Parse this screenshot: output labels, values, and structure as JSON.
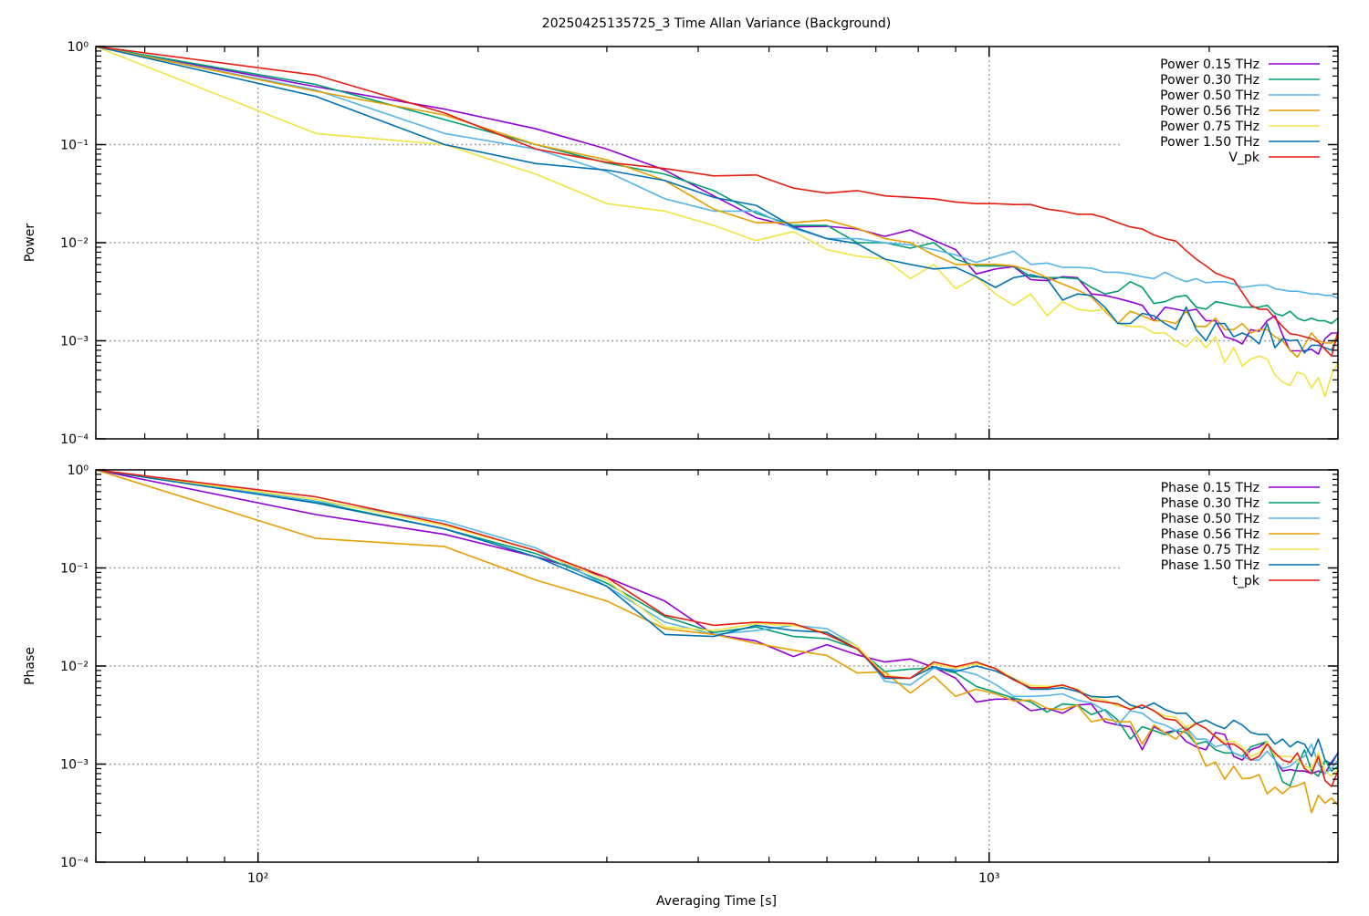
{
  "chart_data": [
    {
      "type": "line",
      "title": "20250425135725_3 Time Allan Variance (Background)",
      "xlabel": "",
      "ylabel": "Power",
      "xscale": "log",
      "yscale": "log",
      "xlim": [
        60,
        3000
      ],
      "ylim": [
        0.0001,
        1
      ],
      "grid": true,
      "legend": "top-right",
      "x_step": 60,
      "yticks": [
        1,
        0.1,
        0.01,
        0.001,
        0.0001
      ],
      "ytick_labels": [
        "10⁰",
        "10⁻¹",
        "10⁻²",
        "10⁻³",
        "10⁻⁴"
      ],
      "xticks": [
        100,
        1000
      ],
      "xtick_labels": [],
      "series": [
        {
          "name": "Power 0.15 THz",
          "color": "#9400d3",
          "values": [
            1,
            0.39,
            0.23,
            0.145,
            0.09,
            0.055,
            0.03,
            0.018,
            0.0145,
            0.0147,
            0.0138,
            0.0116,
            0.0135,
            0.0106,
            0.0085,
            0.0048,
            0.0054,
            0.0057,
            0.0042,
            0.0041,
            0.0045,
            0.0044,
            0.003,
            0.0029,
            0.0027,
            0.0025,
            0.0023,
            0.0016,
            0.0022,
            0.0021,
            0.002,
            0.0021,
            0.0016,
            0.0016,
            0.0011,
            0.00103,
            0.00093,
            0.0013,
            0.00125,
            0.0016,
            0.0018,
            0.00115,
            0.00079,
            0.00079,
            0.00079,
            0.00082,
            0.00073,
            0.00105,
            0.0012,
            0.0012
          ]
        },
        {
          "name": "Power 0.30 THz",
          "color": "#009e73",
          "values": [
            1,
            0.41,
            0.18,
            0.1,
            0.065,
            0.05,
            0.034,
            0.02,
            0.015,
            0.015,
            0.01,
            0.01,
            0.0088,
            0.01,
            0.0068,
            0.0058,
            0.0058,
            0.0058,
            0.0045,
            0.0044,
            0.0044,
            0.0043,
            0.0035,
            0.003,
            0.0032,
            0.004,
            0.0035,
            0.0024,
            0.0025,
            0.0028,
            0.0029,
            0.0022,
            0.0021,
            0.0025,
            0.0024,
            0.0023,
            0.0022,
            0.0022,
            0.0022,
            0.0023,
            0.0019,
            0.0018,
            0.002,
            0.0017,
            0.0016,
            0.0017,
            0.0016,
            0.0016,
            0.0015,
            0.0017
          ]
        },
        {
          "name": "Power 0.50 THz",
          "color": "#56b4e9",
          "values": [
            1,
            0.36,
            0.13,
            0.09,
            0.053,
            0.028,
            0.021,
            0.021,
            0.014,
            0.011,
            0.011,
            0.01,
            0.0095,
            0.0085,
            0.0075,
            0.0063,
            0.0072,
            0.0082,
            0.006,
            0.0062,
            0.0056,
            0.0056,
            0.0055,
            0.005,
            0.005,
            0.0048,
            0.0045,
            0.0043,
            0.005,
            0.0044,
            0.004,
            0.0043,
            0.0039,
            0.004,
            0.004,
            0.0038,
            0.0035,
            0.0036,
            0.0037,
            0.0037,
            0.0034,
            0.0033,
            0.0032,
            0.0032,
            0.0031,
            0.003,
            0.003,
            0.0029,
            0.0029,
            0.0027
          ]
        },
        {
          "name": "Power 0.56 THz",
          "color": "#e69f00",
          "values": [
            1,
            0.35,
            0.2,
            0.1,
            0.07,
            0.043,
            0.022,
            0.016,
            0.016,
            0.017,
            0.014,
            0.011,
            0.01,
            0.0075,
            0.006,
            0.006,
            0.006,
            0.0058,
            0.0052,
            0.0044,
            0.0038,
            0.0033,
            0.0028,
            0.002,
            0.0015,
            0.002,
            0.0018,
            0.0016,
            0.0016,
            0.0015,
            0.002,
            0.0014,
            0.0014,
            0.0017,
            0.0013,
            0.0013,
            0.0015,
            0.0012,
            0.0013,
            0.0013,
            0.0011,
            0.001,
            0.0008,
            0.00068,
            0.0009,
            0.0012,
            0.001,
            0.00095,
            0.00095,
            0.0011
          ]
        },
        {
          "name": "Power 0.75 THz",
          "color": "#f0e442",
          "values": [
            1,
            0.13,
            0.1,
            0.05,
            0.025,
            0.021,
            0.015,
            0.0105,
            0.013,
            0.0085,
            0.0073,
            0.0068,
            0.0043,
            0.006,
            0.0034,
            0.0045,
            0.003,
            0.0023,
            0.003,
            0.0018,
            0.0025,
            0.0021,
            0.002,
            0.0021,
            0.0015,
            0.0014,
            0.0014,
            0.0012,
            0.0012,
            0.001,
            0.00087,
            0.0011,
            0.00085,
            0.0011,
            0.0006,
            0.00085,
            0.00055,
            0.00065,
            0.0007,
            0.00065,
            0.00045,
            0.00038,
            0.00035,
            0.00048,
            0.00045,
            0.00033,
            0.00042,
            0.00027,
            0.00045,
            0.0006
          ]
        },
        {
          "name": "Power 1.50 THz",
          "color": "#0072b2",
          "values": [
            1,
            0.31,
            0.1,
            0.064,
            0.055,
            0.043,
            0.029,
            0.024,
            0.0145,
            0.011,
            0.0098,
            0.0068,
            0.006,
            0.0054,
            0.0056,
            0.0045,
            0.0035,
            0.0044,
            0.0047,
            0.0043,
            0.0026,
            0.003,
            0.0029,
            0.0022,
            0.0015,
            0.0015,
            0.0019,
            0.0018,
            0.0015,
            0.0013,
            0.0022,
            0.0013,
            0.001,
            0.0015,
            0.0015,
            0.0011,
            0.0012,
            0.0011,
            0.00093,
            0.0015,
            0.00085,
            0.00105,
            0.001,
            0.00102,
            0.00075,
            0.0009,
            0.0009,
            0.00085,
            0.0008,
            0.0011
          ]
        },
        {
          "name": "V_pk",
          "color": "#e51e10",
          "values": [
            1,
            0.51,
            0.21,
            0.09,
            0.066,
            0.057,
            0.048,
            0.049,
            0.036,
            0.032,
            0.034,
            0.03,
            0.029,
            0.028,
            0.026,
            0.025,
            0.025,
            0.0245,
            0.0245,
            0.022,
            0.021,
            0.0195,
            0.0195,
            0.018,
            0.016,
            0.0145,
            0.0138,
            0.012,
            0.011,
            0.0104,
            0.0083,
            0.0068,
            0.0058,
            0.0049,
            0.0045,
            0.0042,
            0.0031,
            0.0023,
            0.0021,
            0.0021,
            0.0017,
            0.0014,
            0.00118,
            0.00115,
            0.0011,
            0.00105,
            0.00097,
            0.00082,
            0.0007,
            0.00125
          ]
        }
      ]
    },
    {
      "type": "line",
      "xlabel": "Averaging Time [s]",
      "ylabel": "Phase",
      "xscale": "log",
      "yscale": "log",
      "xlim": [
        60,
        3000
      ],
      "ylim": [
        0.0001,
        1
      ],
      "grid": true,
      "legend": "top-right",
      "x_step": 60,
      "yticks": [
        1,
        0.1,
        0.01,
        0.001,
        0.0001
      ],
      "ytick_labels": [
        "10⁰",
        "10⁻¹",
        "10⁻²",
        "10⁻³",
        "10⁻⁴"
      ],
      "xticks": [
        100,
        1000
      ],
      "xtick_labels": [
        "10²",
        "10³"
      ],
      "series": [
        {
          "name": "Phase 0.15 THz",
          "color": "#9400d3",
          "values": [
            1,
            0.35,
            0.22,
            0.13,
            0.08,
            0.046,
            0.021,
            0.018,
            0.0125,
            0.0165,
            0.013,
            0.011,
            0.0118,
            0.0097,
            0.0075,
            0.0043,
            0.0046,
            0.0046,
            0.0035,
            0.0037,
            0.0033,
            0.004,
            0.0041,
            0.0027,
            0.0025,
            0.0024,
            0.0014,
            0.0024,
            0.0021,
            0.0022,
            0.0017,
            0.0015,
            0.0014,
            0.0021,
            0.002,
            0.0012,
            0.0011,
            0.0014,
            0.0015,
            0.0017,
            0.0011,
            0.00085,
            0.00088,
            0.00085,
            0.00085,
            0.0008,
            0.00085,
            0.0008,
            0.00105,
            0.0013
          ]
        },
        {
          "name": "Phase 0.30 THz",
          "color": "#009e73",
          "values": [
            1,
            0.47,
            0.25,
            0.14,
            0.07,
            0.032,
            0.022,
            0.025,
            0.02,
            0.019,
            0.015,
            0.0088,
            0.0093,
            0.0096,
            0.0085,
            0.0062,
            0.0054,
            0.0047,
            0.0043,
            0.0034,
            0.0041,
            0.004,
            0.0032,
            0.0036,
            0.0028,
            0.0018,
            0.0024,
            0.0022,
            0.002,
            0.0022,
            0.0021,
            0.0016,
            0.0017,
            0.0014,
            0.0013,
            0.0013,
            0.0012,
            0.0015,
            0.0016,
            0.0017,
            0.0011,
            0.00066,
            0.0006,
            0.00095,
            0.0014,
            0.00085,
            0.00075,
            0.0011,
            0.00085,
            0.00095
          ]
        },
        {
          "name": "Phase 0.50 THz",
          "color": "#56b4e9",
          "values": [
            1,
            0.48,
            0.3,
            0.16,
            0.065,
            0.028,
            0.021,
            0.023,
            0.026,
            0.024,
            0.016,
            0.007,
            0.0064,
            0.0095,
            0.0092,
            0.0082,
            0.0065,
            0.0049,
            0.0049,
            0.005,
            0.0052,
            0.0045,
            0.0042,
            0.0035,
            0.0025,
            0.0035,
            0.0033,
            0.0027,
            0.0025,
            0.0022,
            0.0024,
            0.0018,
            0.0018,
            0.0015,
            0.0016,
            0.0013,
            0.0012,
            0.0011,
            0.0011,
            0.00135,
            0.0011,
            0.0009,
            0.00095,
            0.0011,
            0.0012,
            0.0016,
            0.001,
            0.0008,
            0.0009,
            0.0011
          ]
        },
        {
          "name": "Phase 0.56 THz",
          "color": "#e69f00",
          "values": [
            1,
            0.2,
            0.165,
            0.075,
            0.046,
            0.024,
            0.021,
            0.017,
            0.0145,
            0.0128,
            0.0085,
            0.0087,
            0.0053,
            0.0079,
            0.0049,
            0.0058,
            0.0052,
            0.0044,
            0.0045,
            0.0037,
            0.0036,
            0.004,
            0.0027,
            0.0029,
            0.0027,
            0.0027,
            0.0016,
            0.0025,
            0.0021,
            0.0018,
            0.0023,
            0.0016,
            0.00095,
            0.00105,
            0.0007,
            0.00095,
            0.00071,
            0.00072,
            0.00078,
            0.0005,
            0.00058,
            0.0005,
            0.00058,
            0.0006,
            0.00065,
            0.00032,
            0.00048,
            0.0004,
            0.00045,
            0.00038
          ]
        },
        {
          "name": "Phase 0.75 THz",
          "color": "#f0e442",
          "values": [
            1,
            0.5,
            0.27,
            0.15,
            0.075,
            0.025,
            0.023,
            0.027,
            0.026,
            0.022,
            0.016,
            0.008,
            0.0075,
            0.0105,
            0.0095,
            0.0105,
            0.0095,
            0.0075,
            0.0063,
            0.0062,
            0.0063,
            0.0058,
            0.0048,
            0.0045,
            0.0039,
            0.0037,
            0.004,
            0.0035,
            0.0031,
            0.003,
            0.0024,
            0.0026,
            0.0023,
            0.0019,
            0.0017,
            0.0017,
            0.0015,
            0.0012,
            0.0013,
            0.0017,
            0.0012,
            0.0012,
            0.0012,
            0.0011,
            0.00095,
            0.0009,
            0.0013,
            0.00085,
            0.00075,
            0.0009
          ]
        },
        {
          "name": "Phase 1.50 THz",
          "color": "#0072b2",
          "values": [
            1,
            0.46,
            0.25,
            0.13,
            0.065,
            0.021,
            0.02,
            0.026,
            0.023,
            0.022,
            0.015,
            0.0075,
            0.0075,
            0.0098,
            0.0088,
            0.01,
            0.0089,
            0.0074,
            0.0058,
            0.0058,
            0.006,
            0.0055,
            0.0049,
            0.0048,
            0.0049,
            0.004,
            0.0037,
            0.0042,
            0.0036,
            0.0033,
            0.0033,
            0.0026,
            0.0028,
            0.0025,
            0.0023,
            0.0028,
            0.0025,
            0.0021,
            0.002,
            0.002,
            0.0016,
            0.0018,
            0.0015,
            0.0017,
            0.0016,
            0.0012,
            0.0018,
            0.0011,
            0.001,
            0.0013
          ]
        },
        {
          "name": "t_pk",
          "color": "#e51e10",
          "values": [
            1,
            0.53,
            0.28,
            0.15,
            0.08,
            0.033,
            0.026,
            0.028,
            0.027,
            0.021,
            0.015,
            0.0078,
            0.0075,
            0.011,
            0.0098,
            0.011,
            0.0094,
            0.0072,
            0.006,
            0.006,
            0.0064,
            0.0057,
            0.0045,
            0.0043,
            0.0041,
            0.0036,
            0.004,
            0.0035,
            0.0029,
            0.0028,
            0.0022,
            0.0026,
            0.0023,
            0.0019,
            0.0016,
            0.0016,
            0.0014,
            0.0011,
            0.0012,
            0.0016,
            0.0013,
            0.0011,
            0.00104,
            0.0013,
            0.0009,
            0.0008,
            0.0012,
            0.00068,
            0.00059,
            0.00085
          ]
        }
      ]
    }
  ]
}
